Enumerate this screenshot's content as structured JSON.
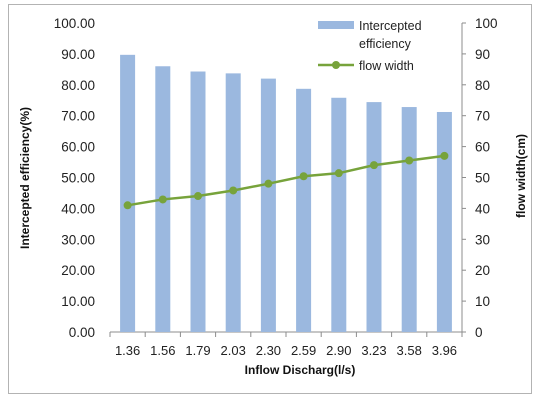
{
  "chart_data": {
    "type": "bar+line",
    "categories": [
      "1.36",
      "1.56",
      "1.79",
      "2.03",
      "2.30",
      "2.59",
      "2.90",
      "3.23",
      "3.58",
      "3.96"
    ],
    "series": [
      {
        "name": "Intercepted efficiency",
        "type": "bar",
        "axis": "left",
        "color": "#9bb8df",
        "values": [
          89.7,
          86.0,
          84.3,
          83.7,
          82.0,
          78.7,
          75.8,
          74.4,
          72.8,
          71.2
        ]
      },
      {
        "name": "flow width",
        "type": "line",
        "axis": "right",
        "color": "#77a33b",
        "values": [
          41.0,
          42.9,
          44.0,
          45.8,
          48.0,
          50.4,
          51.4,
          54.0,
          55.5,
          57.0
        ]
      }
    ],
    "xlabel": "Inflow Discharg(l/s)",
    "ylabel_left": "Intercepted efficiency(%)",
    "ylabel_right": "flow width(cm)",
    "ylim_left": [
      0,
      100
    ],
    "ylim_right": [
      0,
      100
    ],
    "yticks_left": [
      "0.00",
      "10.00",
      "20.00",
      "30.00",
      "40.00",
      "50.00",
      "60.00",
      "70.00",
      "80.00",
      "90.00",
      "100.00"
    ],
    "yticks_right": [
      "0",
      "10",
      "20",
      "30",
      "40",
      "50",
      "60",
      "70",
      "80",
      "90",
      "100"
    ],
    "legend": {
      "position": "top-right",
      "lines": [
        [
          "Intercepted",
          "efficiency"
        ],
        [
          "flow width"
        ]
      ]
    },
    "grid": false
  }
}
